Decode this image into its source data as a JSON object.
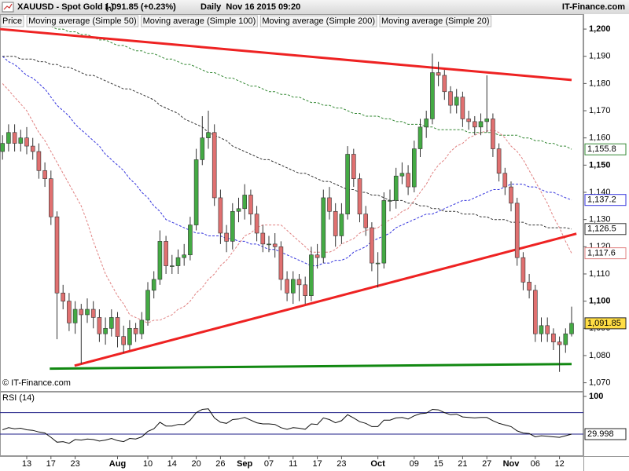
{
  "chart_data": {
    "type": "candlestick",
    "title": "XAUUSD - Spot Gold (-)",
    "subtitle": "1,091.85 (+0.23%)",
    "timeframe": "Daily  Nov 16 2015 09:20",
    "source": "IT-Finance.com",
    "copyright": "© IT-Finance.com",
    "categories": [
      null,
      null,
      null,
      null,
      "13",
      null,
      null,
      null,
      "17",
      null,
      null,
      null,
      "23",
      null,
      null,
      null,
      null,
      null,
      null,
      "Aug",
      null,
      null,
      null,
      null,
      "10",
      null,
      null,
      null,
      "14",
      null,
      null,
      null,
      "20",
      null,
      null,
      null,
      "26",
      null,
      null,
      null,
      "Sep",
      null,
      null,
      null,
      "07",
      null,
      null,
      null,
      "11",
      null,
      null,
      null,
      "17",
      null,
      null,
      null,
      "23",
      null,
      null,
      null,
      null,
      null,
      "Oct",
      null,
      null,
      null,
      null,
      null,
      "09",
      null,
      null,
      null,
      "15",
      null,
      null,
      null,
      "21",
      null,
      null,
      null,
      "27",
      null,
      null,
      null,
      "Nov",
      null,
      null,
      null,
      "06",
      null,
      null,
      null,
      "12",
      null,
      null
    ],
    "series": [
      {
        "name": "Price",
        "up_color": "#44aa44",
        "down_color": "#e07070",
        "value_label": "1,091.85",
        "open": [
          1155,
          1158,
          1162,
          1158,
          1160,
          1157,
          1155,
          1148,
          1145,
          1131,
          1103,
          1100,
          1092,
          1097,
          1095,
          1097,
          1094,
          1088,
          1090,
          1094,
          1087,
          1084,
          1090,
          1088,
          1093,
          1104,
          1108,
          1122,
          1113,
          1113,
          1116,
          1117,
          1128,
          1152,
          1160,
          1162,
          1138,
          1125,
          1122,
          1133,
          1134,
          1139,
          1132,
          1125,
          1121,
          1121,
          1120,
          1108,
          1103,
          1108,
          1106,
          1102,
          1117,
          1116,
          1138,
          1133,
          1124,
          1132,
          1154,
          1145,
          1132,
          1127,
          1114,
          1114,
          1137,
          1137,
          1146,
          1147,
          1142,
          1156,
          1164,
          1167,
          1184,
          1183,
          1177,
          1172,
          1175,
          1167,
          1166,
          1164,
          1166,
          1167,
          1156,
          1147,
          1142,
          1136,
          1116,
          1107,
          1104,
          1088,
          1091,
          1088,
          1085,
          1084,
          1088
        ],
        "high": [
          1161,
          1165,
          1165,
          1163,
          1164,
          1160,
          1158,
          1151,
          1148,
          1133,
          1106,
          1103,
          1100,
          1099,
          1101,
          1100,
          1097,
          1094,
          1097,
          1096,
          1091,
          1093,
          1092,
          1096,
          1107,
          1111,
          1126,
          1124,
          1117,
          1119,
          1121,
          1131,
          1156,
          1168,
          1170,
          1165,
          1141,
          1128,
          1136,
          1138,
          1143,
          1141,
          1135,
          1128,
          1124,
          1125,
          1122,
          1111,
          1111,
          1110,
          1109,
          1120,
          1121,
          1141,
          1142,
          1136,
          1136,
          1157,
          1156,
          1147,
          1135,
          1129,
          1118,
          1140,
          1141,
          1149,
          1151,
          1150,
          1159,
          1167,
          1170,
          1191,
          1188,
          1185,
          1179,
          1178,
          1177,
          1170,
          1168,
          1169,
          1183,
          1169,
          1158,
          1149,
          1144,
          1138,
          1118,
          1110,
          1106,
          1094,
          1094,
          1090,
          1087,
          1090,
          1098
        ],
        "low": [
          1152,
          1155,
          1155,
          1155,
          1154,
          1152,
          1145,
          1142,
          1128,
          1086,
          1097,
          1089,
          1088,
          1077,
          1092,
          1090,
          1085,
          1084,
          1087,
          1083,
          1081,
          1082,
          1085,
          1086,
          1091,
          1101,
          1106,
          1110,
          1110,
          1110,
          1113,
          1115,
          1126,
          1150,
          1156,
          1135,
          1121,
          1118,
          1119,
          1129,
          1130,
          1128,
          1122,
          1118,
          1118,
          1116,
          1104,
          1100,
          1099,
          1100,
          1099,
          1100,
          1112,
          1114,
          1130,
          1120,
          1121,
          1130,
          1142,
          1129,
          1124,
          1111,
          1105,
          1112,
          1133,
          1134,
          1143,
          1139,
          1140,
          1153,
          1160,
          1165,
          1179,
          1174,
          1169,
          1169,
          1164,
          1163,
          1161,
          1161,
          1162,
          1153,
          1144,
          1139,
          1133,
          1113,
          1104,
          1101,
          1085,
          1085,
          1085,
          1082,
          1074,
          1081,
          1087
        ],
        "close": [
          1158,
          1162,
          1158,
          1160,
          1157,
          1155,
          1148,
          1145,
          1131,
          1103,
          1100,
          1092,
          1097,
          1095,
          1097,
          1094,
          1088,
          1090,
          1094,
          1087,
          1084,
          1090,
          1088,
          1093,
          1104,
          1108,
          1122,
          1113,
          1113,
          1116,
          1117,
          1128,
          1152,
          1160,
          1162,
          1138,
          1125,
          1122,
          1133,
          1134,
          1139,
          1132,
          1125,
          1121,
          1121,
          1120,
          1108,
          1103,
          1108,
          1106,
          1102,
          1117,
          1116,
          1138,
          1133,
          1124,
          1132,
          1154,
          1145,
          1132,
          1127,
          1114,
          1114,
          1137,
          1137,
          1146,
          1147,
          1142,
          1156,
          1164,
          1167,
          1184,
          1183,
          1177,
          1172,
          1175,
          1167,
          1166,
          1164,
          1166,
          1167,
          1156,
          1147,
          1142,
          1136,
          1116,
          1107,
          1104,
          1088,
          1091,
          1088,
          1085,
          1084,
          1088,
          1091.85
        ]
      }
    ],
    "overlays": [
      {
        "name": "Moving average (Simple 50)",
        "color": "#3333dd",
        "value_label": "1,137.2",
        "values": [
          1190,
          1188,
          1187,
          1185,
          1183,
          1182,
          1180,
          1178,
          1175,
          1172,
          1170,
          1168,
          1165,
          1163,
          1161,
          1159,
          1157,
          1154,
          1152,
          1150,
          1148,
          1145,
          1143,
          1140,
          1138,
          1135,
          1133,
          1130,
          1129,
          1128,
          1127,
          1126,
          1125,
          1125,
          1124,
          1124,
          1124,
          1123,
          1123,
          1122,
          1122,
          1121,
          1121,
          1120,
          1119,
          1119,
          1118,
          1117,
          1116,
          1115,
          1114,
          1113,
          1113,
          1114,
          1114,
          1115,
          1115,
          1116,
          1118,
          1119,
          1120,
          1122,
          1123,
          1124,
          1125,
          1127,
          1128,
          1129,
          1130,
          1131,
          1132,
          1132,
          1133,
          1134,
          1135,
          1136,
          1137,
          1137,
          1138,
          1139,
          1140,
          1141,
          1141,
          1142,
          1143,
          1143,
          1143,
          1142,
          1142,
          1141,
          1140,
          1140,
          1139,
          1138,
          1137.2
        ]
      },
      {
        "name": "Moving average (Simple 100)",
        "color": "#333333",
        "value_label": "1,126.5",
        "values": [
          1190,
          1190,
          1190,
          1189,
          1189,
          1189,
          1188,
          1188,
          1187,
          1187,
          1186,
          1186,
          1185,
          1184,
          1183,
          1183,
          1182,
          1181,
          1180,
          1179,
          1178,
          1178,
          1177,
          1176,
          1175,
          1174,
          1172,
          1171,
          1170,
          1169,
          1167,
          1166,
          1165,
          1164,
          1162,
          1161,
          1160,
          1159,
          1157,
          1156,
          1155,
          1154,
          1153,
          1152,
          1152,
          1151,
          1150,
          1149,
          1148,
          1147,
          1147,
          1146,
          1145,
          1144,
          1144,
          1143,
          1142,
          1141,
          1141,
          1140,
          1140,
          1139,
          1139,
          1138,
          1137,
          1137,
          1137,
          1136,
          1136,
          1135,
          1135,
          1134,
          1134,
          1133,
          1133,
          1133,
          1132,
          1132,
          1132,
          1131,
          1131,
          1130,
          1130,
          1130,
          1129,
          1129,
          1129,
          1128,
          1128,
          1128,
          1127,
          1127,
          1127,
          1127,
          1126.5
        ]
      },
      {
        "name": "Moving average (Simple 200)",
        "color": "#338833",
        "value_label": "1,155.8",
        "values": [
          null,
          null,
          null,
          null,
          null,
          null,
          null,
          null,
          1201,
          1200,
          1200,
          1199,
          1199,
          1198,
          1198,
          1197,
          1196,
          1196,
          1195,
          1194,
          1194,
          1193,
          1192,
          1192,
          1191,
          1191,
          1190,
          1189,
          1189,
          1188,
          1187,
          1187,
          1186,
          1185,
          1184,
          1184,
          1183,
          1182,
          1182,
          1181,
          1180,
          1179,
          1179,
          1178,
          1177,
          1177,
          1176,
          1176,
          1175,
          1175,
          1174,
          1173,
          1173,
          1172,
          1172,
          1171,
          1171,
          1170,
          1169,
          1169,
          1168,
          1168,
          1168,
          1167,
          1167,
          1166,
          1166,
          1165,
          1165,
          1165,
          1164,
          1164,
          1163,
          1163,
          1163,
          1163,
          1163,
          1162,
          1162,
          1162,
          1162,
          1162,
          1161,
          1161,
          1161,
          1161,
          1160,
          1160,
          1159,
          1159,
          1158,
          1158,
          1157,
          1157,
          1155.8
        ]
      },
      {
        "name": "Moving average (Simple 20)",
        "color": "#e08080",
        "value_label": "1,117.6",
        "values": [
          1180,
          1177.5,
          1175,
          1172.5,
          1170,
          1166,
          1162,
          1159,
          1155,
          1151,
          1147,
          1143,
          1139,
          1135,
          1129,
          1122,
          1116,
          1110,
          1106,
          1102,
          1099,
          1095,
          1094,
          1093,
          1092,
          1093,
          1093,
          1094,
          1095,
          1097,
          1098,
          1100,
          1103,
          1105,
          1108,
          1110,
          1113,
          1115,
          1118,
          1121,
          1124,
          1125,
          1127,
          1128,
          1128,
          1128,
          1128,
          1126,
          1124,
          1122,
          1120,
          1118,
          1118,
          1118,
          1118,
          1119,
          1121,
          1122,
          1123,
          1125,
          1126,
          1126.5,
          1127,
          1128.5,
          1130,
          1131,
          1133,
          1134,
          1137,
          1140,
          1143,
          1147,
          1150,
          1152,
          1155,
          1157,
          1158,
          1160,
          1161,
          1162,
          1162.5,
          1163,
          1162,
          1160,
          1157,
          1155,
          1152,
          1148,
          1144,
          1140,
          1136,
          1131,
          1127,
          1122,
          1117.6
        ]
      }
    ],
    "trendlines": [
      {
        "color": "#ee2222",
        "from": [
          -0.4,
          1200
        ],
        "to": [
          94,
          1181.3
        ]
      },
      {
        "color": "#ee2222",
        "from": [
          11.9,
          1076.3
        ],
        "to": [
          94.8,
          1124.8
        ]
      },
      {
        "color": "#118811",
        "from": [
          7.8,
          1075.2
        ],
        "to": [
          94,
          1076.9
        ]
      }
    ],
    "ylim": [
      1067,
      1205.5
    ],
    "yticks": [
      {
        "value": 1070,
        "label": "1,070"
      },
      {
        "value": 1080,
        "label": "1,080"
      },
      {
        "value": 1090,
        "label": "1,090"
      },
      {
        "value": 1100,
        "label": "1,100"
      },
      {
        "value": 1110,
        "label": "1,110"
      },
      {
        "value": 1120,
        "label": "1,120"
      },
      {
        "value": 1130,
        "label": "1,130"
      },
      {
        "value": 1140,
        "label": "1,140"
      },
      {
        "value": 1150,
        "label": "1,150"
      },
      {
        "value": 1160,
        "label": "1,160"
      },
      {
        "value": 1170,
        "label": "1,170"
      },
      {
        "value": 1180,
        "label": "1,180"
      },
      {
        "value": 1190,
        "label": "1,190"
      },
      {
        "value": 1200,
        "label": "1,200"
      }
    ],
    "indicator": {
      "name": "RSI (14)",
      "color": "#111111",
      "level_color": "#222288",
      "ylim": [
        0,
        100
      ],
      "yticks": [
        100
      ],
      "levels": [
        30,
        70
      ],
      "value_label": "29.998",
      "values": [
        38,
        42,
        40,
        41,
        38,
        37,
        34,
        32,
        24,
        15,
        16,
        13,
        20,
        19,
        21,
        20,
        17,
        19,
        22,
        18,
        16,
        22,
        21,
        25,
        35,
        40,
        52,
        45,
        45,
        48,
        48,
        56,
        70,
        76,
        77,
        60,
        52,
        50,
        57,
        58,
        61,
        56,
        51,
        49,
        49,
        48,
        42,
        39,
        42,
        41,
        39,
        49,
        48,
        60,
        57,
        51,
        55,
        66,
        60,
        53,
        50,
        44,
        44,
        56,
        56,
        60,
        61,
        58,
        64,
        68,
        69,
        76,
        75,
        70,
        66,
        67,
        62,
        61,
        60,
        61,
        61,
        55,
        50,
        47,
        44,
        36,
        32,
        31,
        25,
        27,
        26,
        25,
        24,
        27,
        29.998
      ]
    }
  }
}
